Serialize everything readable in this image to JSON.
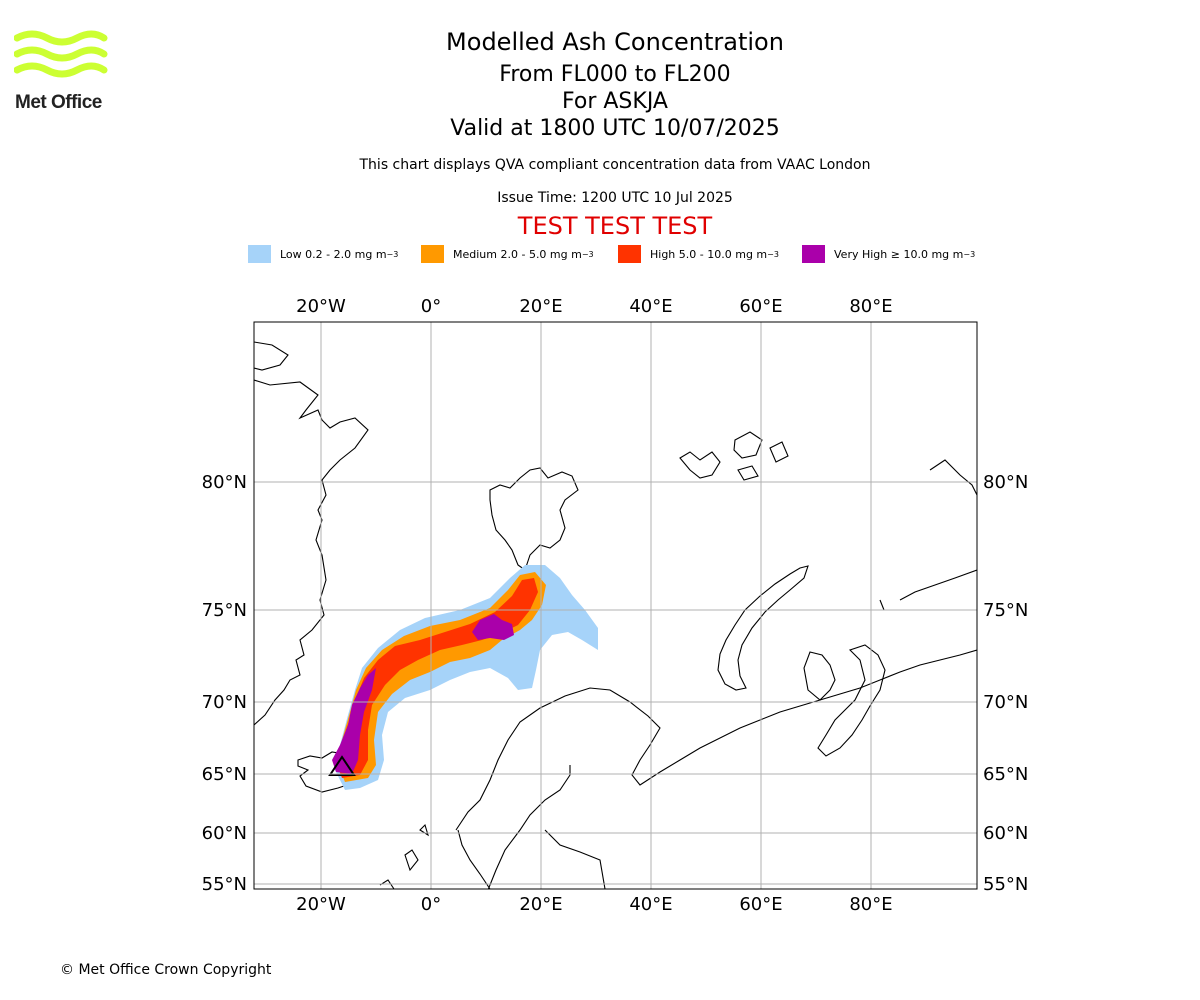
{
  "logo": {
    "text": "Met Office",
    "icon": "met-office-wave-logo",
    "color": "#ccff33"
  },
  "header": {
    "title": "Modelled Ash Concentration",
    "levels": "From FL000 to FL200",
    "volcano": "For ASKJA",
    "valid": "Valid at 1800 UTC 10/07/2025",
    "note": "This chart displays QVA compliant concentration data from VAAC London",
    "issue": "Issue Time: 1200 UTC 10 Jul 2025",
    "test": "TEST TEST TEST",
    "test_color": "#e00000"
  },
  "legend": [
    {
      "name": "Low",
      "range": "0.2 - 2.0 mg m",
      "color": "#a6d3f9"
    },
    {
      "name": "Medium",
      "range": "2.0 - 5.0 mg m",
      "color": "#ff9900"
    },
    {
      "name": "High",
      "range": "5.0 - 10.0 mg m",
      "color": "#ff3300"
    },
    {
      "name": "Very High",
      "range": "≥ 10.0 mg m",
      "color": "#aa00aa"
    }
  ],
  "legend_unit_superscript": "−3",
  "map": {
    "lon_ticks": [
      "20°W",
      "0°",
      "20°E",
      "40°E",
      "60°E",
      "80°E"
    ],
    "lat_ticks": [
      "80°N",
      "75°N",
      "70°N",
      "65°N",
      "60°N",
      "55°N"
    ],
    "volcano_marker": "triangle",
    "grid": true
  },
  "footer": {
    "copyright": "© Met Office Crown Copyright"
  }
}
